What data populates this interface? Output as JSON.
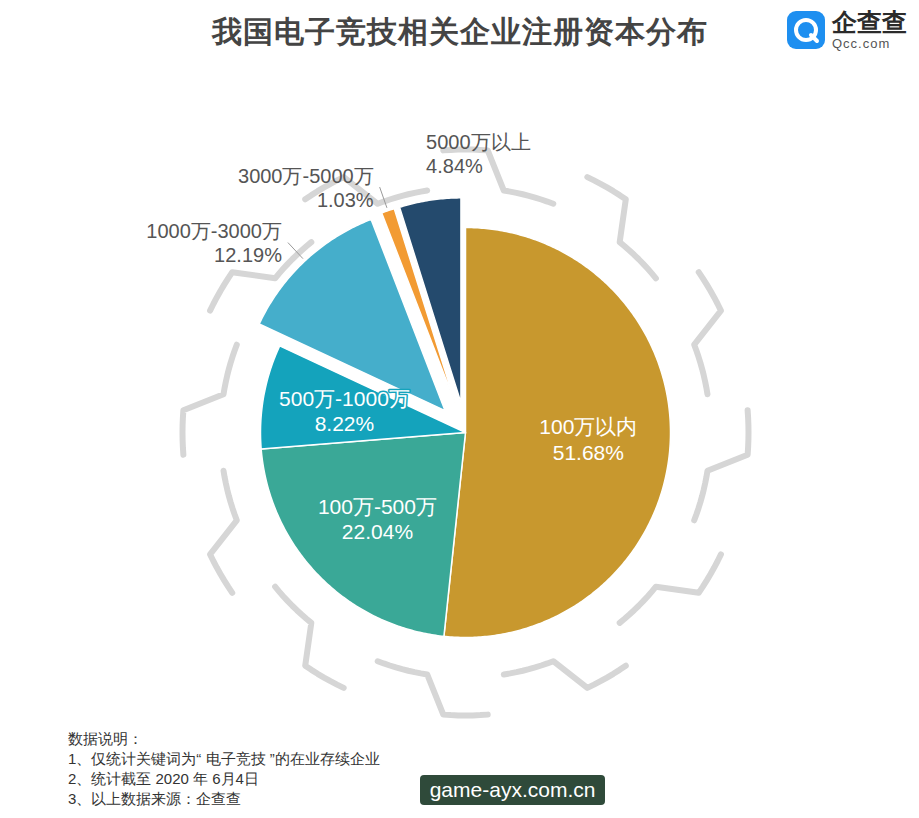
{
  "chart_data": {
    "type": "pie",
    "title": "我国电子竞技相关企业注册资本分布",
    "categories": [
      "100万以内",
      "100万-500万",
      "500万-1000万",
      "1000万-3000万",
      "3000万-5000万",
      "5000万以上"
    ],
    "values": [
      51.68,
      22.04,
      8.22,
      12.19,
      1.03,
      4.84
    ],
    "value_labels": [
      "51.68%",
      "22.04%",
      "8.22%",
      "12.19%",
      "1.03%",
      "4.84%"
    ],
    "colors": [
      "#C8982E",
      "#3AA897",
      "#14A3BC",
      "#45AECB",
      "#F29B33",
      "#244A6D"
    ],
    "data_labels": true
  },
  "logo": {
    "name": "企查查",
    "url": "Qcc.com"
  },
  "notes": {
    "heading": "数据说明：",
    "items": [
      "1、仅统计关键词为“ 电子竞技 ”的在业存续企业",
      "2、统计截至 2020 年 6月4日",
      "3、以上数据来源：企查查"
    ]
  },
  "watermark": "game-ayx.com.cn"
}
